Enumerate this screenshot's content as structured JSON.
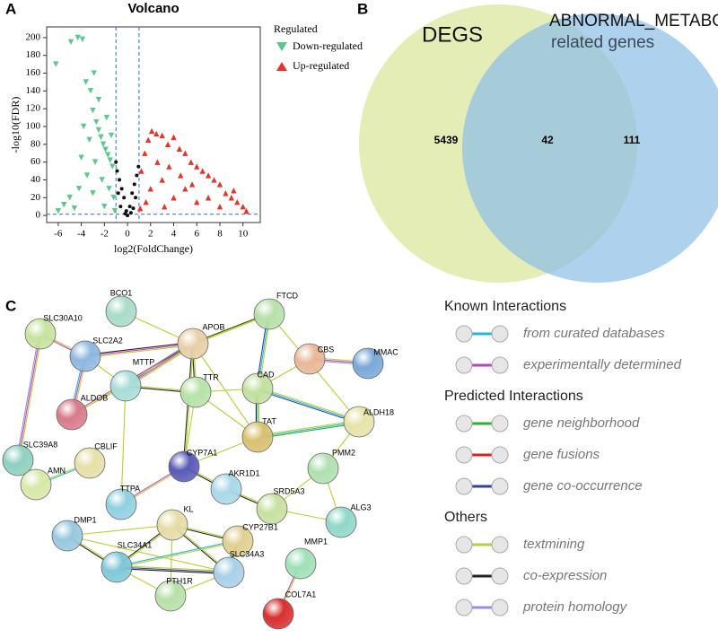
{
  "chart_data": [
    {
      "type": "scatter",
      "panel": "A",
      "title": "Volcano",
      "xlabel": "log2(FoldChange)",
      "ylabel": "-log10(FDR)",
      "xlim": [
        -7,
        11.5
      ],
      "xticks": [
        -6,
        -4,
        -2,
        0,
        2,
        4,
        6,
        8,
        10
      ],
      "ylim": [
        -8,
        212
      ],
      "yticks": [
        0,
        20,
        40,
        60,
        80,
        100,
        120,
        140,
        160,
        180,
        200
      ],
      "threshold_lines": {
        "x": [
          -1,
          1
        ],
        "y": [
          1.3
        ]
      },
      "legend_title": "Regulated",
      "series": [
        {
          "name": "Down-regulated",
          "color": "#5cc78a",
          "marker": "triangle-down",
          "x": [
            -6.2,
            -4.9,
            -4.3,
            -3.9,
            -3.6,
            -3.2,
            -3.0,
            -2.7,
            -2.5,
            -2.3,
            -2.1,
            -1.9,
            -1.7,
            -1.5,
            -1.3,
            -2.8,
            -3.5,
            -4.2,
            -5.0,
            -5.5,
            -2.2,
            -1.6,
            -1.2,
            -3.0,
            -2.0,
            -4.0,
            -3.3,
            -2.5,
            -1.8,
            -1.4,
            -6.0,
            -4.6,
            -1.1,
            -3.8,
            -2.9
          ],
          "values": [
            170,
            195,
            200,
            198,
            150,
            140,
            118,
            105,
            96,
            88,
            80,
            74,
            68,
            62,
            55,
            60,
            45,
            30,
            20,
            12,
            40,
            30,
            20,
            25,
            10,
            65,
            85,
            130,
            110,
            90,
            5,
            8,
            5,
            100,
            160
          ]
        },
        {
          "name": "Up-regulated",
          "color": "#e8322b",
          "marker": "triangle-up",
          "x": [
            1.2,
            1.5,
            1.8,
            2.1,
            2.5,
            3.0,
            3.5,
            4.0,
            4.5,
            5.0,
            5.5,
            6.0,
            6.5,
            7.0,
            7.5,
            8.0,
            8.5,
            9.0,
            9.5,
            10.0,
            10.3,
            2.0,
            3.0,
            4.0,
            5.0,
            6.0,
            7.0,
            8.0,
            1.6,
            2.6,
            3.6,
            4.6,
            5.6,
            9.2,
            3.2,
            1.1
          ],
          "values": [
            50,
            70,
            85,
            95,
            92,
            90,
            80,
            88,
            75,
            70,
            60,
            55,
            50,
            45,
            40,
            35,
            25,
            20,
            15,
            10,
            5,
            30,
            40,
            20,
            30,
            15,
            20,
            10,
            15,
            60,
            55,
            45,
            35,
            28,
            10,
            8
          ]
        },
        {
          "color": "#111111",
          "marker": "circle",
          "x": [
            -1,
            -0.9,
            -0.7,
            -0.5,
            -0.3,
            -0.1,
            0,
            0.2,
            0.4,
            0.6,
            0.8,
            0.95,
            -0.6,
            0.5,
            -0.2,
            0.3,
            -0.8,
            0.7
          ],
          "values": [
            60,
            50,
            40,
            30,
            20,
            5,
            0,
            10,
            25,
            35,
            45,
            55,
            10,
            8,
            2,
            3,
            25,
            20
          ]
        }
      ]
    },
    {
      "type": "venn",
      "panel": "B",
      "sets": [
        {
          "label_lines": [
            "DEGS"
          ],
          "color": "#d9e69a"
        },
        {
          "label_lines": [
            "ABNORMAL_METABOL",
            "related genes"
          ],
          "color": "#8fbfe6"
        }
      ],
      "values": [
        5439,
        42,
        111
      ]
    }
  ],
  "network": {
    "panel": "C",
    "nodes": [
      {
        "label": "BCO1",
        "color": "#a8dcc8"
      },
      {
        "label": "FTCD",
        "color": "#b8e0a8"
      },
      {
        "label": "APOB",
        "color": "#e8cfa8"
      },
      {
        "label": "SLC30A10",
        "color": "#c6e3a0"
      },
      {
        "label": "SLC2A2",
        "color": "#8fb8e0"
      },
      {
        "label": "CBS",
        "color": "#e8b898"
      },
      {
        "label": "MMAC",
        "color": "#7aa8d8"
      },
      {
        "label": "MTTP",
        "color": "#a8ddd8"
      },
      {
        "label": "TTR",
        "color": "#b6e3a8"
      },
      {
        "label": "CAD",
        "color": "#c2e0a0"
      },
      {
        "label": "ALDOB",
        "color": "#d87a8a"
      },
      {
        "label": "ALDH18",
        "color": "#e6e3a8"
      },
      {
        "label": "SLC39A8",
        "color": "#8fd0c0"
      },
      {
        "label": "TAT",
        "color": "#d8c070"
      },
      {
        "label": "CYP7A1",
        "color": "#5a5ab8"
      },
      {
        "label": "CBLIF",
        "color": "#e6e0a8"
      },
      {
        "label": "AMN",
        "color": "#d8e8a8"
      },
      {
        "label": "PMM2",
        "color": "#b0e0b0"
      },
      {
        "label": "AKR1D1",
        "color": "#a8d8e8"
      },
      {
        "label": "SRD5A3",
        "color": "#c8e0a0"
      },
      {
        "label": "TTPA",
        "color": "#90d0e0"
      },
      {
        "label": "ALG3",
        "color": "#90d8c8"
      },
      {
        "label": "DMP1",
        "color": "#98c8e0"
      },
      {
        "label": "KL",
        "color": "#e6dca8"
      },
      {
        "label": "CYP27B1",
        "color": "#e0d090"
      },
      {
        "label": "MMP1",
        "color": "#a0e0b8"
      },
      {
        "label": "SLC34A1",
        "color": "#80c8d8"
      },
      {
        "label": "SLC34A3",
        "color": "#a8d0e8"
      },
      {
        "label": "PTH1R",
        "color": "#b8e0a8"
      },
      {
        "label": "COL7A1",
        "color": "#d83030"
      }
    ],
    "legend": [
      {
        "title": "Known Interactions",
        "items": [
          {
            "label": "from curated databases",
            "color": "#20b8d8"
          },
          {
            "label": "experimentally determined",
            "color": "#c040c0"
          }
        ]
      },
      {
        "title": "Predicted Interactions",
        "items": [
          {
            "label": "gene neighborhood",
            "color": "#30b030"
          },
          {
            "label": "gene fusions",
            "color": "#e02020"
          },
          {
            "label": "gene co-occurrence",
            "color": "#3040a0"
          }
        ]
      },
      {
        "title": "Others",
        "items": [
          {
            "label": "textmining",
            "color": "#b8d030"
          },
          {
            "label": "co-expression",
            "color": "#222222"
          },
          {
            "label": "protein homology",
            "color": "#9090e0"
          }
        ]
      }
    ]
  }
}
